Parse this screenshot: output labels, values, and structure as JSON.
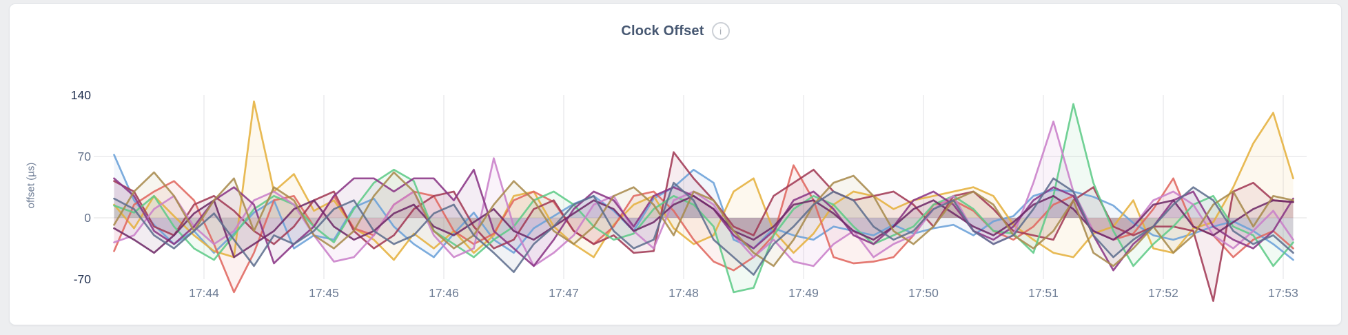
{
  "header": {
    "title": "Clock Offset",
    "info_glyph": "i"
  },
  "colors": {
    "grid": "#e6e6e8",
    "axis_tick_minmax": "#1e2d4d",
    "axis_tick_mid": "#5f6e88",
    "x_tick": "#6e7d95"
  },
  "chart_data": {
    "type": "line",
    "title": "Clock Offset",
    "xlabel": "",
    "ylabel": "offset (µs)",
    "yticks": [
      140,
      70,
      0,
      -70
    ],
    "grid_hlines": [
      70,
      0
    ],
    "ylim": [
      -95,
      150
    ],
    "xticks": [
      "17:44",
      "17:45",
      "17:46",
      "17:47",
      "17:48",
      "17:49",
      "17:50",
      "17:51",
      "17:52",
      "17:53"
    ],
    "x_start": "17:43:15",
    "x_interval_seconds": 10,
    "grid": true,
    "legend": "none",
    "fill_to_zero": true,
    "series": [
      {
        "name": "series-1",
        "color": "#6aa0d8",
        "values": [
          72,
          20,
          -8,
          -30,
          -15,
          -40,
          -18,
          6,
          20,
          -35,
          -20,
          -25,
          12,
          22,
          -10,
          -30,
          -45,
          -18,
          6,
          -25,
          -40,
          -12,
          2,
          16,
          25,
          8,
          -15,
          22,
          35,
          55,
          40,
          -25,
          -35,
          -12,
          -20,
          -25,
          -10,
          -15,
          -20,
          -8,
          -18,
          -12,
          -8,
          -20,
          -4,
          2,
          25,
          32,
          30,
          24,
          14,
          -6,
          -20,
          -25,
          -18,
          -10,
          -4,
          -15,
          -30,
          -48
        ]
      },
      {
        "name": "series-2",
        "color": "#e5b13d",
        "values": [
          15,
          -12,
          25,
          2,
          -20,
          -38,
          -45,
          133,
          30,
          50,
          8,
          20,
          -12,
          -25,
          -48,
          -18,
          -35,
          -15,
          -40,
          -20,
          25,
          30,
          -10,
          -30,
          -45,
          -8,
          15,
          25,
          -12,
          -30,
          -20,
          30,
          45,
          -15,
          -40,
          -18,
          15,
          30,
          25,
          10,
          20,
          25,
          30,
          35,
          25,
          -8,
          -25,
          -40,
          -45,
          -18,
          -10,
          20,
          -35,
          -40,
          -12,
          -5,
          35,
          85,
          120,
          45
        ]
      },
      {
        "name": "series-3",
        "color": "#e0675e",
        "values": [
          -38,
          15,
          30,
          42,
          20,
          -30,
          -85,
          -40,
          20,
          25,
          -10,
          25,
          -12,
          -20,
          15,
          30,
          25,
          -15,
          -30,
          -18,
          20,
          30,
          18,
          -15,
          -30,
          -10,
          25,
          30,
          8,
          -25,
          -50,
          -60,
          -45,
          -20,
          60,
          20,
          -45,
          -52,
          -50,
          -45,
          -20,
          15,
          20,
          8,
          -15,
          -25,
          -10,
          15,
          25,
          -15,
          -25,
          -18,
          10,
          45,
          -10,
          -20,
          -45,
          -25,
          -15,
          -35
        ]
      },
      {
        "name": "series-4",
        "color": "#a23a55",
        "values": [
          42,
          30,
          -10,
          -20,
          15,
          25,
          8,
          -15,
          -30,
          -10,
          20,
          30,
          -15,
          -35,
          -20,
          10,
          25,
          30,
          -10,
          -35,
          -25,
          10,
          20,
          -15,
          -30,
          -20,
          -40,
          -38,
          75,
          45,
          20,
          -10,
          -20,
          25,
          40,
          55,
          30,
          20,
          25,
          30,
          15,
          -10,
          25,
          30,
          10,
          -15,
          -20,
          -25,
          20,
          35,
          -10,
          -20,
          -10,
          -10,
          -15,
          -95,
          30,
          40,
          20,
          18
        ]
      },
      {
        "name": "series-5",
        "color": "#5fcb87",
        "values": [
          14,
          6,
          25,
          -10,
          -35,
          -48,
          -20,
          10,
          25,
          15,
          -10,
          -28,
          10,
          40,
          55,
          42,
          -15,
          -30,
          -45,
          -25,
          -10,
          20,
          30,
          15,
          -10,
          -25,
          -18,
          10,
          25,
          15,
          -10,
          -85,
          -80,
          -20,
          10,
          25,
          15,
          -10,
          -30,
          -20,
          -10,
          15,
          25,
          10,
          -15,
          -18,
          -40,
          25,
          130,
          40,
          -15,
          -55,
          -30,
          -10,
          15,
          25,
          -10,
          -20,
          -55,
          -28
        ]
      },
      {
        "name": "series-6",
        "color": "#c97fc9",
        "values": [
          -28,
          -20,
          10,
          25,
          -10,
          -30,
          -15,
          20,
          30,
          15,
          -20,
          -50,
          -45,
          -20,
          15,
          30,
          -20,
          -45,
          -35,
          68,
          -10,
          -55,
          -40,
          -20,
          15,
          25,
          -15,
          -35,
          20,
          30,
          15,
          -20,
          -45,
          -25,
          -50,
          -55,
          -30,
          -15,
          -45,
          -30,
          -20,
          10,
          25,
          -15,
          -30,
          -20,
          40,
          110,
          30,
          -15,
          -25,
          -10,
          20,
          30,
          15,
          -20,
          -35,
          -15,
          8,
          -25
        ]
      },
      {
        "name": "series-7",
        "color": "#8a3585",
        "values": [
          45,
          25,
          -15,
          -30,
          -10,
          20,
          35,
          15,
          -52,
          -30,
          -10,
          25,
          45,
          45,
          30,
          45,
          45,
          20,
          55,
          -15,
          -35,
          -55,
          -25,
          10,
          30,
          20,
          -10,
          25,
          35,
          25,
          10,
          -20,
          -35,
          -15,
          20,
          30,
          10,
          -20,
          -30,
          -10,
          20,
          30,
          15,
          -15,
          -25,
          -10,
          20,
          35,
          25,
          -20,
          -60,
          -30,
          -10,
          20,
          30,
          -10,
          -25,
          -35,
          -15,
          22
        ]
      },
      {
        "name": "series-8",
        "color": "#6e2a68",
        "values": [
          -12,
          -25,
          -40,
          -20,
          5,
          20,
          -45,
          -30,
          -15,
          10,
          20,
          -10,
          -25,
          -15,
          5,
          15,
          -10,
          -20,
          -5,
          10,
          -15,
          -25,
          -10,
          5,
          20,
          10,
          -15,
          -5,
          15,
          25,
          10,
          -15,
          -25,
          -10,
          15,
          20,
          5,
          -15,
          -25,
          -10,
          10,
          20,
          5,
          -10,
          -20,
          -5,
          15,
          25,
          10,
          -15,
          -25,
          -10,
          15,
          20,
          -10,
          -20,
          -5,
          10,
          20,
          18
        ]
      },
      {
        "name": "series-9",
        "color": "#a98b4d",
        "values": [
          -8,
          30,
          52,
          25,
          -15,
          20,
          45,
          -15,
          35,
          20,
          -20,
          -35,
          -15,
          25,
          52,
          30,
          -15,
          -35,
          -20,
          15,
          42,
          20,
          -15,
          -30,
          -10,
          25,
          35,
          15,
          -20,
          30,
          20,
          -15,
          -40,
          -55,
          -25,
          15,
          40,
          48,
          25,
          -15,
          -30,
          -10,
          20,
          30,
          15,
          -20,
          -35,
          -15,
          20,
          -40,
          -55,
          -35,
          -10,
          -40,
          -20,
          15,
          30,
          -10,
          25,
          20
        ]
      },
      {
        "name": "series-10",
        "color": "#5e6e8e",
        "values": [
          22,
          10,
          -20,
          -35,
          -15,
          5,
          -25,
          -55,
          -20,
          -30,
          -15,
          10,
          20,
          -15,
          -30,
          -20,
          5,
          15,
          -20,
          -40,
          -62,
          -30,
          -10,
          15,
          25,
          -15,
          -35,
          -25,
          40,
          20,
          -25,
          -45,
          -65,
          -30,
          -10,
          15,
          30,
          20,
          -10,
          -25,
          -15,
          10,
          20,
          -15,
          -30,
          -20,
          10,
          45,
          30,
          -20,
          -45,
          -25,
          -10,
          15,
          35,
          20,
          -15,
          -30,
          -20,
          -40
        ]
      }
    ]
  }
}
